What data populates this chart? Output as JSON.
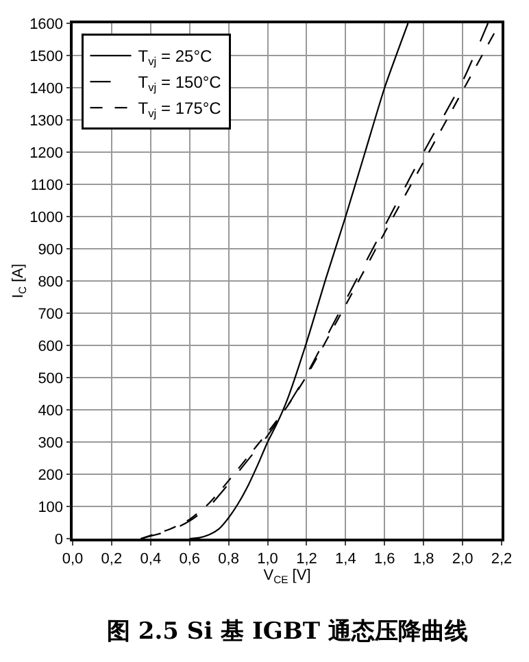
{
  "chart_data": {
    "type": "line",
    "title": "图 2.5 Si 基 IGBT 通态压降曲线",
    "xlabel": "V$_{CE}$ [V]",
    "ylabel": "I$_{C}$ [A]",
    "xlim": [
      0,
      2.2
    ],
    "ylim": [
      0,
      1600
    ],
    "xticks": [
      {
        "value": 0,
        "label": "0,0"
      },
      {
        "value": 0.2,
        "label": "0,2"
      },
      {
        "value": 0.4,
        "label": "0,4"
      },
      {
        "value": 0.6,
        "label": "0,6"
      },
      {
        "value": 0.8,
        "label": "0,8"
      },
      {
        "value": 1.0,
        "label": "1,0"
      },
      {
        "value": 1.2,
        "label": "1,2"
      },
      {
        "value": 1.4,
        "label": "1,4"
      },
      {
        "value": 1.6,
        "label": "1,6"
      },
      {
        "value": 1.8,
        "label": "1,8"
      },
      {
        "value": 2.0,
        "label": "2,0"
      },
      {
        "value": 2.2,
        "label": "2,2"
      }
    ],
    "yticks": [
      0,
      100,
      200,
      300,
      400,
      500,
      600,
      700,
      800,
      900,
      1000,
      1100,
      1200,
      1300,
      1400,
      1500,
      1600
    ],
    "grid": true,
    "legend": "top left",
    "marker": "none",
    "series": [
      {
        "name": "T$_{vj}$ = 25°C",
        "color": "#000000",
        "line_style": "solid",
        "x": [
          0.6,
          0.65,
          0.7,
          0.75,
          0.8,
          0.85,
          0.9,
          0.95,
          1.0,
          1.05,
          1.1,
          1.2,
          1.3,
          1.4,
          1.5,
          1.6,
          1.72
        ],
        "values": [
          0,
          3,
          12,
          30,
          65,
          110,
          165,
          230,
          300,
          360,
          430,
          610,
          810,
          1000,
          1200,
          1400,
          1600
        ]
      },
      {
        "name": "T$_{vj}$ = 150°C",
        "color": "#000000",
        "line_style": "longdash",
        "x": [
          0.35,
          0.4,
          0.5,
          0.6,
          0.7,
          0.8,
          0.9,
          1.0,
          1.1,
          1.2,
          1.4,
          1.6,
          1.8,
          2.0,
          2.13
        ],
        "values": [
          0,
          8,
          25,
          55,
          100,
          170,
          245,
          320,
          410,
          510,
          740,
          970,
          1200,
          1420,
          1600
        ]
      },
      {
        "name": "T$_{vj}$ = 175°C",
        "color": "#000000",
        "line_style": "dashed",
        "x": [
          0.35,
          0.4,
          0.5,
          0.6,
          0.7,
          0.8,
          0.9,
          1.0,
          1.1,
          1.2,
          1.4,
          1.6,
          1.8,
          2.0,
          2.19
        ],
        "values": [
          0,
          10,
          30,
          60,
          110,
          180,
          255,
          330,
          410,
          505,
          725,
          950,
          1170,
          1390,
          1600
        ]
      }
    ]
  }
}
